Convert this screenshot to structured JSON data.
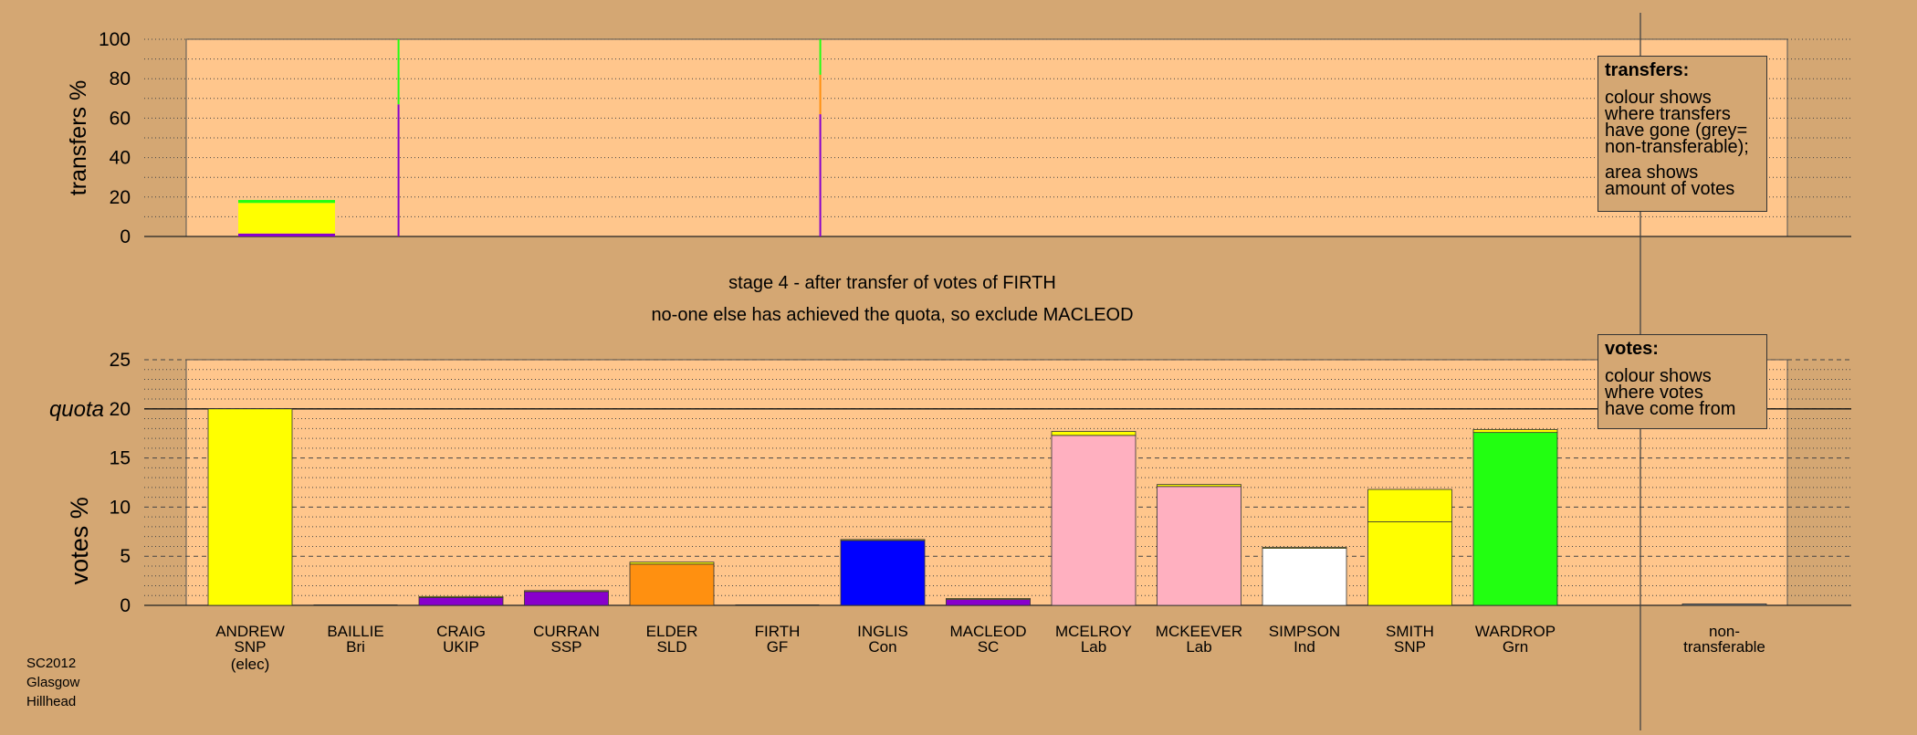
{
  "colors": {
    "background": "#D4A773",
    "plot_background": "#FFC68C",
    "SNP": "#FFFF00",
    "UKIP": "#8800CC",
    "SSP": "#8800CC",
    "SLD": "#FF9010",
    "Con": "#0000FF",
    "SC": "#8800CC",
    "Lab": "#FFB0C0",
    "Ind": "#FFFFFF",
    "Grn": "#22FF11",
    "non_transferable": "#999999"
  },
  "stage": {
    "line1": "stage 4 - after transfer of votes of FIRTH",
    "line2": "no-one else has achieved the quota, so exclude MACLEOD"
  },
  "transfers_note": {
    "title": "transfers:",
    "lines": [
      "colour shows",
      "where transfers",
      "have gone (grey=",
      "non-transferable);"
    ],
    "lines2": [
      "area shows",
      "amount of votes"
    ]
  },
  "votes_note": {
    "title": "votes:",
    "lines": [
      "colour shows",
      "where votes",
      "have come from"
    ]
  },
  "footer": [
    "SC2012",
    "Glasgow",
    "Hillhead"
  ],
  "chart_data": [
    {
      "type": "bar",
      "name": "transfers",
      "ylabel": "transfers %",
      "ylim": [
        0,
        100
      ],
      "yticks": [
        0,
        20,
        40,
        60,
        80,
        100
      ],
      "grid": "dotted",
      "categories": [
        "ANDREW",
        "BAILLIE",
        "CRAIG",
        "CURRAN",
        "ELDER",
        "FIRTH",
        "INGLIS",
        "MACLEOD",
        "MCELROY",
        "MCKEEVER",
        "SIMPSON",
        "SMITH",
        "WARDROP"
      ],
      "bars": [
        {
          "candidate": "ANDREW",
          "width_fraction": 1.0,
          "segments": [
            {
              "to": "UKIP",
              "value": 1.5
            },
            {
              "to": "SNP",
              "value": 15.5
            },
            {
              "to": "Grn",
              "value": 1.5
            }
          ]
        },
        {
          "candidate": "BAILLIE",
          "width_fraction": 0.02,
          "segments": [
            {
              "to": "UKIP",
              "value": 67
            },
            {
              "to": "Grn",
              "value": 33
            }
          ]
        },
        {
          "candidate": "FIRTH",
          "width_fraction": 0.02,
          "segments": [
            {
              "to": "UKIP",
              "value": 62
            },
            {
              "to": "SLD",
              "value": 20
            },
            {
              "to": "Grn",
              "value": 18
            }
          ]
        }
      ]
    },
    {
      "type": "bar",
      "name": "votes",
      "ylabel": "votes %",
      "ylim": [
        0,
        25
      ],
      "yticks": [
        0,
        5,
        10,
        15,
        20,
        25
      ],
      "quota": 20,
      "quota_label": "quota",
      "grid": "dashed",
      "candidates": [
        {
          "name": "ANDREW",
          "party": "SNP",
          "status": "(elec)",
          "total": 20.0,
          "segments": [
            {
              "from": "SNP",
              "value": 20.0
            }
          ]
        },
        {
          "name": "BAILLIE",
          "party": "Bri",
          "status": "",
          "total": 0.0,
          "segments": []
        },
        {
          "name": "CRAIG",
          "party": "UKIP",
          "status": "",
          "total": 0.9,
          "segments": [
            {
              "from": "UKIP",
              "value": 0.8
            },
            {
              "from": "SNP",
              "value": 0.1
            }
          ]
        },
        {
          "name": "CURRAN",
          "party": "SSP",
          "status": "",
          "total": 1.5,
          "segments": [
            {
              "from": "SSP",
              "value": 1.4
            },
            {
              "from": "SNP",
              "value": 0.1
            }
          ]
        },
        {
          "name": "ELDER",
          "party": "SLD",
          "status": "",
          "total": 4.4,
          "segments": [
            {
              "from": "SLD",
              "value": 4.2
            },
            {
              "from": "SNP",
              "value": 0.2
            }
          ]
        },
        {
          "name": "FIRTH",
          "party": "GF",
          "status": "",
          "total": 0.0,
          "segments": []
        },
        {
          "name": "INGLIS",
          "party": "Con",
          "status": "",
          "total": 6.7,
          "segments": [
            {
              "from": "Con",
              "value": 6.6
            },
            {
              "from": "SNP",
              "value": 0.1
            }
          ]
        },
        {
          "name": "MACLEOD",
          "party": "SC",
          "status": "",
          "total": 0.7,
          "segments": [
            {
              "from": "SC",
              "value": 0.6
            },
            {
              "from": "SNP",
              "value": 0.1
            }
          ]
        },
        {
          "name": "MCELROY",
          "party": "Lab",
          "status": "",
          "total": 17.7,
          "segments": [
            {
              "from": "Lab",
              "value": 17.3
            },
            {
              "from": "SNP",
              "value": 0.4
            }
          ]
        },
        {
          "name": "MCKEEVER",
          "party": "Lab",
          "status": "",
          "total": 12.3,
          "segments": [
            {
              "from": "Lab",
              "value": 12.1
            },
            {
              "from": "SNP",
              "value": 0.2
            }
          ]
        },
        {
          "name": "SIMPSON",
          "party": "Ind",
          "status": "",
          "total": 5.9,
          "segments": [
            {
              "from": "Ind",
              "value": 5.8
            },
            {
              "from": "SNP",
              "value": 0.1
            }
          ]
        },
        {
          "name": "SMITH",
          "party": "SNP",
          "status": "",
          "total": 11.8,
          "segments": [
            {
              "from": "SNP",
              "value": 8.5
            },
            {
              "from": "SNP",
              "value": 3.3
            }
          ]
        },
        {
          "name": "WARDROP",
          "party": "Grn",
          "status": "",
          "total": 17.9,
          "segments": [
            {
              "from": "Grn",
              "value": 17.6
            },
            {
              "from": "SNP",
              "value": 0.3
            }
          ]
        }
      ],
      "non_transferable": {
        "label_line1": "non-",
        "label_line2": "transferable",
        "total": 0.15
      }
    }
  ]
}
